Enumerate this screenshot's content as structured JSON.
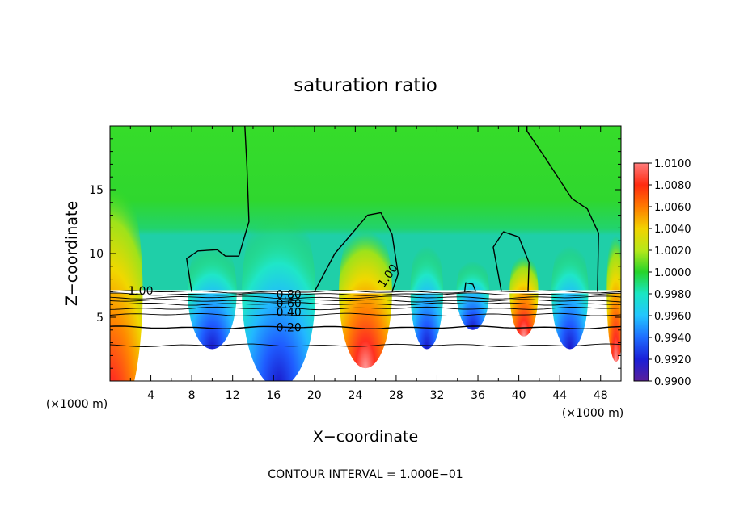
{
  "chart_data": {
    "type": "heatmap",
    "title": "saturation ratio",
    "xlabel": "X−coordinate",
    "ylabel": "Z−coordinate",
    "x_unit_left": "(×1000 m)",
    "x_unit_right": "(×1000 m)",
    "xlim": [
      0,
      50
    ],
    "ylim": [
      0,
      20
    ],
    "x_ticks": [
      4,
      8,
      12,
      16,
      20,
      24,
      28,
      32,
      36,
      40,
      44,
      48
    ],
    "y_ticks": [
      5,
      10,
      15
    ],
    "colorbar": {
      "min": 0.99,
      "max": 1.01,
      "tick_labels": [
        "0.9900",
        "0.9920",
        "0.9940",
        "0.9960",
        "0.9980",
        "1.0000",
        "1.0020",
        "1.0040",
        "1.0060",
        "1.0080",
        "1.0100"
      ],
      "colors": [
        "#5a1f9a",
        "#1a1fd8",
        "#1f6cff",
        "#22c6ff",
        "#19e6c4",
        "#26d42a",
        "#b6e81a",
        "#f2d300",
        "#ff7a00",
        "#ff2a10",
        "#ff7c7c"
      ]
    },
    "contour_labels": [
      {
        "text": "1.00",
        "x": 3,
        "z": 7.1
      },
      {
        "text": "1.00",
        "x": 27.5,
        "z": 8.4
      },
      {
        "text": "0.80",
        "x": 17.5,
        "z": 6.8
      },
      {
        "text": "0.60",
        "x": 17.5,
        "z": 6.1
      },
      {
        "text": "0.40",
        "x": 17.5,
        "z": 5.4
      },
      {
        "text": "0.20",
        "x": 17.5,
        "z": 4.2
      }
    ],
    "subsaturated_contour_levels": [
      0.9,
      0.8,
      0.7,
      0.6,
      0.5,
      0.4,
      0.3,
      0.2,
      0.1
    ],
    "subsaturated_contour_heights": [
      7.0,
      6.8,
      6.55,
      6.3,
      6.05,
      5.7,
      5.2,
      4.2,
      2.8
    ],
    "cloud_base_z": 7,
    "footer": "CONTOUR INTERVAL = 1.000E−01"
  }
}
